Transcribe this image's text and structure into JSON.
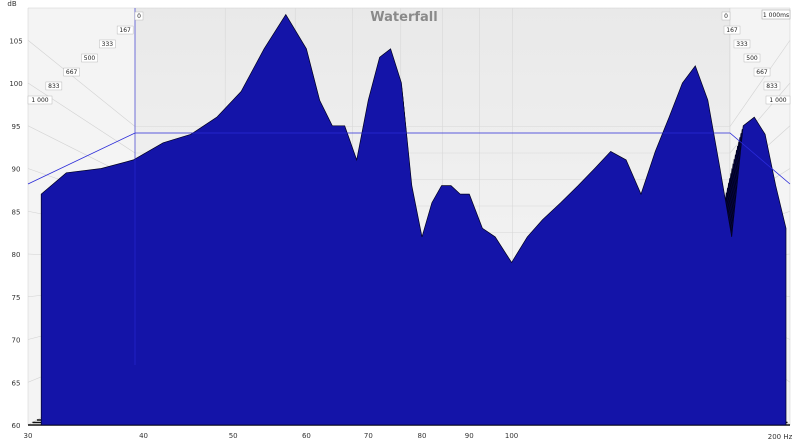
{
  "chart_data": {
    "type": "area",
    "subtype": "waterfall",
    "title": "Waterfall",
    "xlabel": "",
    "ylabel": "",
    "y_unit_label": "dB",
    "x_unit_label": "200 Hz",
    "time_unit_label": "1 000ms",
    "x_scale": "log",
    "xlim": [
      30,
      200
    ],
    "ylim": [
      60,
      108
    ],
    "x_ticks": [
      "30",
      "40",
      "50",
      "60",
      "70",
      "80",
      "90",
      "100"
    ],
    "x_tick_values": [
      30,
      40,
      50,
      60,
      70,
      80,
      90,
      100
    ],
    "y_ticks": [
      "105",
      "100",
      "95",
      "90",
      "85",
      "80",
      "75",
      "70",
      "65",
      "60"
    ],
    "y_tick_values": [
      105,
      100,
      95,
      90,
      85,
      80,
      75,
      70,
      65,
      60
    ],
    "time_ticks_left": [
      "0",
      "167",
      "333",
      "500",
      "667",
      "833",
      "1 000"
    ],
    "time_ticks_right": [
      "0",
      "167",
      "333",
      "500",
      "667",
      "833",
      "1 000"
    ],
    "time_ms": [
      0,
      167,
      333,
      500,
      667,
      833,
      1000
    ],
    "front_slice": {
      "time_ms": 0,
      "freq_hz": [
        31,
        33,
        36,
        39,
        42,
        45,
        48,
        51,
        54,
        57,
        60,
        62,
        64,
        66,
        68,
        70,
        72,
        74,
        76,
        78,
        80,
        82,
        84,
        86,
        88,
        90,
        93,
        96,
        100,
        104,
        108,
        113,
        118,
        123,
        128,
        133,
        138,
        143,
        148,
        153,
        158,
        163,
        168,
        173,
        178,
        183,
        188,
        193,
        198
      ],
      "spl_db": [
        87,
        89.5,
        90,
        91,
        93,
        94,
        96,
        99,
        104,
        108,
        104,
        98,
        95,
        95,
        91,
        98,
        103,
        104,
        100,
        88,
        82,
        86,
        88,
        88,
        87,
        87,
        83,
        82,
        79,
        82,
        84,
        86,
        88,
        90,
        92,
        91,
        87,
        92,
        96,
        100,
        102,
        98,
        90,
        82,
        95,
        96,
        94,
        88,
        83
      ]
    },
    "colors": {
      "surface": "#1414a8",
      "edge": "#000020",
      "floor_ring": "#111111",
      "guide_line": "#2a2ad8"
    },
    "grid": true,
    "legend": "none"
  }
}
